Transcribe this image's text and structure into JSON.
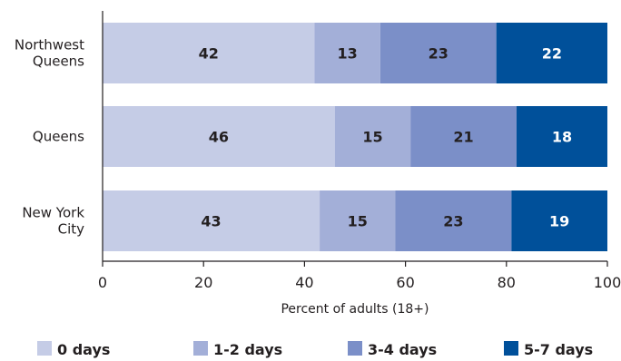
{
  "chart_data": {
    "type": "bar",
    "orientation": "horizontal",
    "stacked": true,
    "categories": [
      [
        "Northwest",
        "Queens"
      ],
      [
        "Queens"
      ],
      [
        "New York",
        "City"
      ]
    ],
    "series": [
      {
        "name": "0 days",
        "values": [
          42,
          46,
          43
        ],
        "color": "#c5cce6",
        "label_color": "#231f20"
      },
      {
        "name": "1-2 days",
        "values": [
          13,
          15,
          15
        ],
        "color": "#a3afd8",
        "label_color": "#231f20"
      },
      {
        "name": "3-4 days",
        "values": [
          23,
          21,
          23
        ],
        "color": "#7b8fc8",
        "label_color": "#231f20"
      },
      {
        "name": "5-7 days",
        "values": [
          22,
          18,
          19
        ],
        "color": "#00509a",
        "label_color": "#ffffff"
      }
    ],
    "xlim": [
      0,
      100
    ],
    "xticks": [
      0,
      20,
      40,
      60,
      80,
      100
    ],
    "xlabel": "Percent of adults (18+)",
    "ylabel": "",
    "title": "",
    "legend_position": "bottom",
    "grid": false
  }
}
